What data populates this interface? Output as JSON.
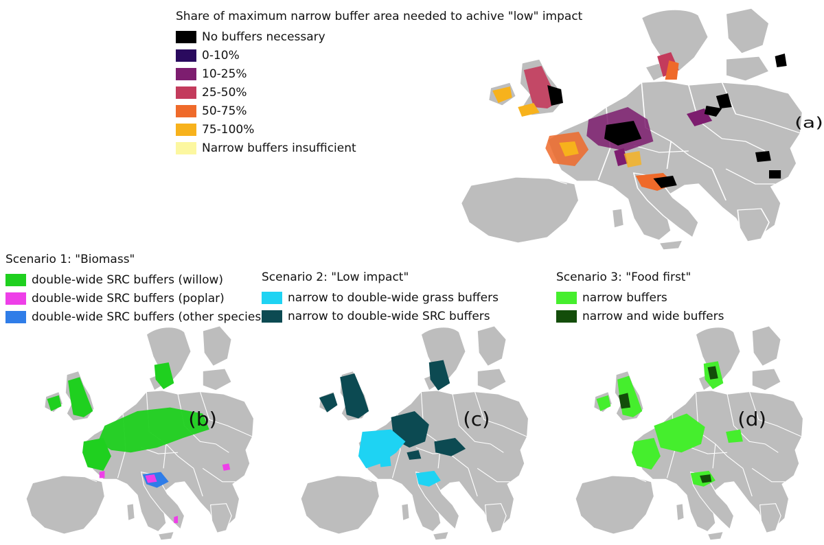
{
  "panel_a": {
    "legend_title": "Share of maximum narrow buffer area needed to achive \"low\" impact",
    "label": "(a)",
    "items": [
      {
        "label": "No buffers necessary",
        "color": "#000000"
      },
      {
        "label": "0-10%",
        "color": "#2a0a5e"
      },
      {
        "label": "10-25%",
        "color": "#7d1d6f"
      },
      {
        "label": "25-50%",
        "color": "#c33b5c"
      },
      {
        "label": "50-75%",
        "color": "#ef6a2a"
      },
      {
        "label": "75-100%",
        "color": "#f7b21c"
      },
      {
        "label": "Narrow buffers insufficient",
        "color": "#fcf7a0"
      }
    ]
  },
  "panel_b": {
    "title": "Scenario 1: \"Biomass\"",
    "label": "(b)",
    "items": [
      {
        "label": "double-wide SRC buffers (willow)",
        "color": "#1fd01f"
      },
      {
        "label": "double-wide SRC buffers (poplar)",
        "color": "#ee3fe8"
      },
      {
        "label": "double-wide SRC buffers (other species)",
        "color": "#2f7de8"
      }
    ]
  },
  "panel_c": {
    "title": "Scenario 2: \"Low impact\"",
    "label": "(c)",
    "items": [
      {
        "label": "narrow to double-wide grass buffers",
        "color": "#1ed3f3"
      },
      {
        "label": "narrow to double-wide SRC buffers",
        "color": "#0c4a52"
      }
    ]
  },
  "panel_d": {
    "title": "Scenario 3: \"Food first\"",
    "label": "(d)",
    "items": [
      {
        "label": "narrow buffers",
        "color": "#45ee2d"
      },
      {
        "label": "narrow and wide buffers",
        "color": "#134d0a"
      }
    ]
  },
  "colors": {
    "land": "#bdbdbd",
    "border": "#ffffff",
    "background": "#ffffff"
  }
}
